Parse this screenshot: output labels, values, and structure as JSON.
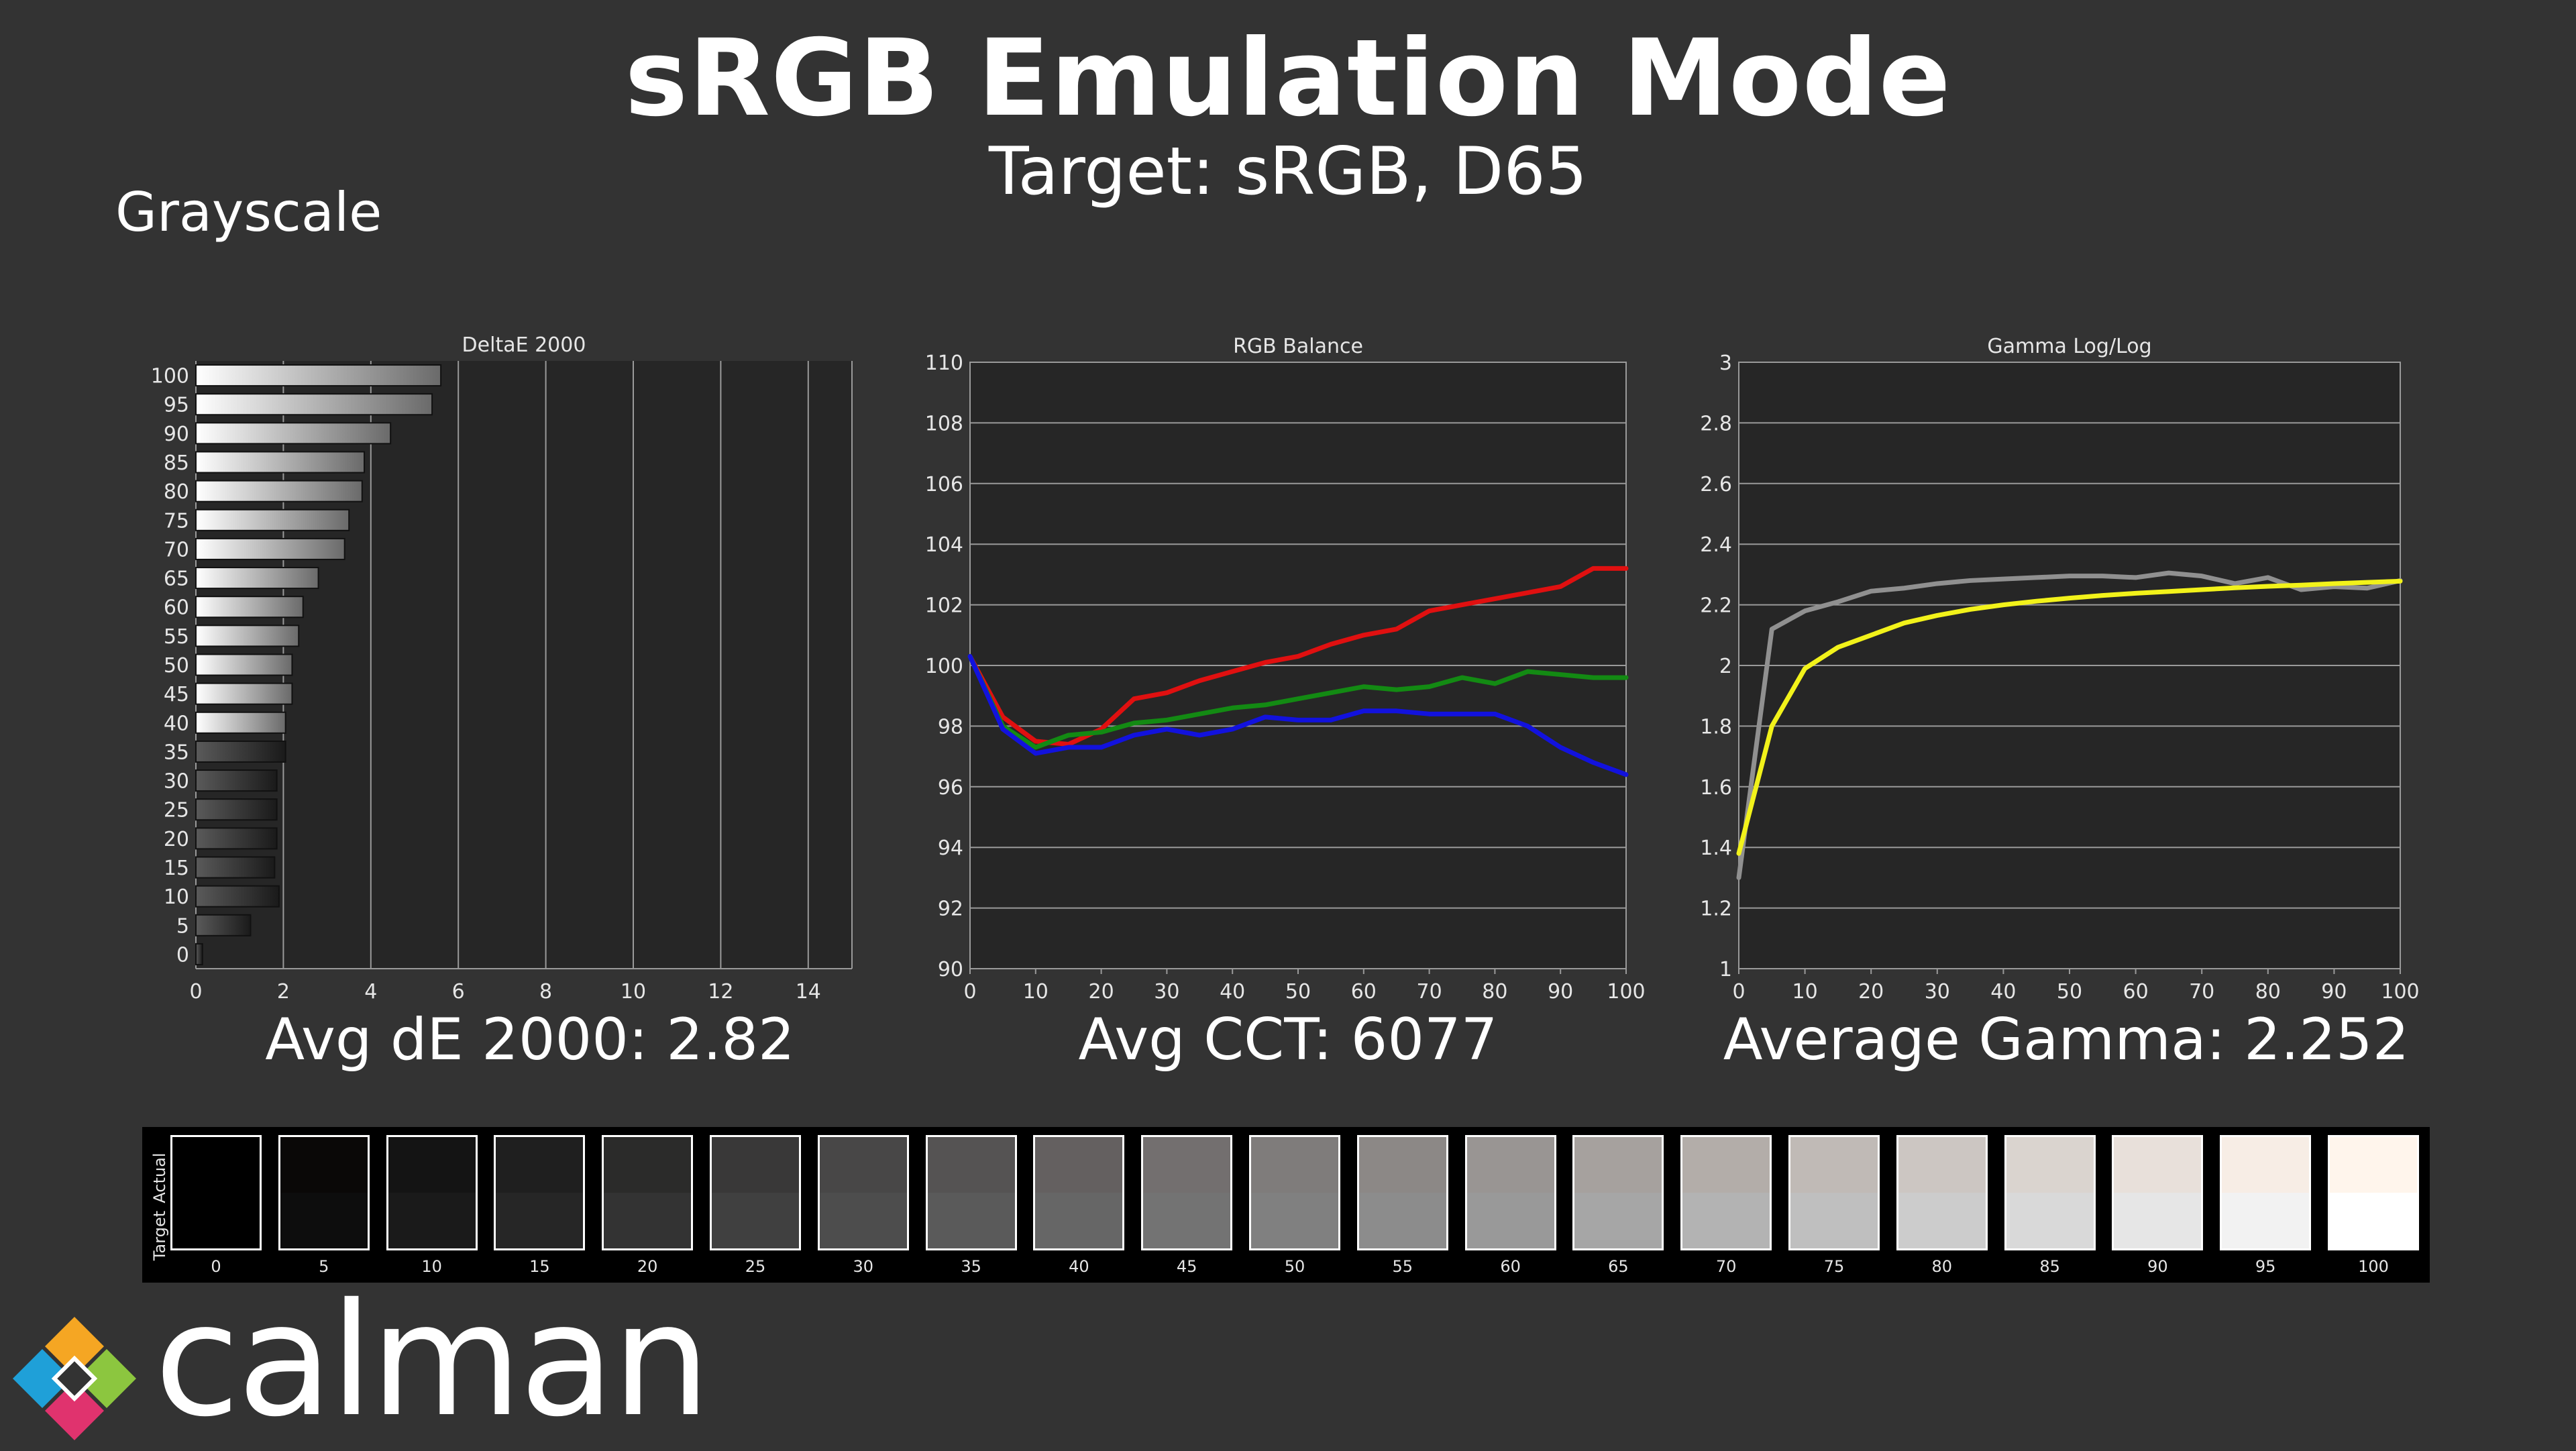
{
  "header": {
    "title": "sRGB Emulation Mode",
    "subtitle": "Target: sRGB, D65",
    "section": "Grayscale"
  },
  "summary": {
    "avg_de": "Avg dE 2000: 2.82",
    "avg_cct": "Avg CCT: 6077",
    "avg_gamma": "Average Gamma: 2.252"
  },
  "chart_data": [
    {
      "type": "bar",
      "orientation": "horizontal",
      "title": "DeltaE 2000",
      "categories": [
        "100",
        "95",
        "90",
        "85",
        "80",
        "75",
        "70",
        "65",
        "60",
        "55",
        "50",
        "45",
        "40",
        "35",
        "30",
        "25",
        "20",
        "15",
        "10",
        "5",
        "0"
      ],
      "values": [
        5.6,
        5.4,
        4.45,
        3.85,
        3.8,
        3.5,
        3.4,
        2.8,
        2.45,
        2.35,
        2.2,
        2.2,
        2.05,
        2.05,
        1.85,
        1.85,
        1.85,
        1.8,
        1.9,
        1.25,
        0.15
      ],
      "xlim": [
        0,
        15
      ],
      "xticks": [
        "0",
        "2",
        "4",
        "6",
        "8",
        "10",
        "12",
        "14"
      ],
      "xtick_values": [
        0,
        2,
        4,
        6,
        8,
        10,
        12,
        14
      ],
      "grid": true
    },
    {
      "type": "line",
      "title": "RGB Balance",
      "x": [
        0,
        5,
        10,
        15,
        20,
        25,
        30,
        35,
        40,
        45,
        50,
        55,
        60,
        65,
        70,
        75,
        80,
        85,
        90,
        95,
        100
      ],
      "ylim": [
        90,
        110
      ],
      "yticks": [
        "90",
        "92",
        "94",
        "96",
        "98",
        "100",
        "102",
        "104",
        "106",
        "108",
        "110"
      ],
      "ytick_values": [
        90,
        92,
        94,
        96,
        98,
        100,
        102,
        104,
        106,
        108,
        110
      ],
      "xticks": [
        "0",
        "10",
        "20",
        "30",
        "40",
        "50",
        "60",
        "70",
        "80",
        "90",
        "100"
      ],
      "xtick_values": [
        0,
        10,
        20,
        30,
        40,
        50,
        60,
        70,
        80,
        90,
        100
      ],
      "grid": true,
      "series": [
        {
          "color": "#e01010",
          "values": [
            100.3,
            98.3,
            97.5,
            97.4,
            97.9,
            98.9,
            99.1,
            99.5,
            99.8,
            100.1,
            100.3,
            100.7,
            101.0,
            101.2,
            101.8,
            102.0,
            102.2,
            102.4,
            102.6,
            103.2,
            103.2
          ]
        },
        {
          "color": "#138a13",
          "values": [
            100.3,
            98.0,
            97.3,
            97.7,
            97.8,
            98.1,
            98.2,
            98.4,
            98.6,
            98.7,
            98.9,
            99.1,
            99.3,
            99.2,
            99.3,
            99.6,
            99.4,
            99.8,
            99.7,
            99.6,
            99.6
          ]
        },
        {
          "color": "#1212dd",
          "values": [
            100.3,
            97.9,
            97.1,
            97.3,
            97.3,
            97.7,
            97.9,
            97.7,
            97.9,
            98.3,
            98.2,
            98.2,
            98.5,
            98.5,
            98.4,
            98.4,
            98.4,
            98.0,
            97.3,
            96.8,
            96.4
          ]
        }
      ]
    },
    {
      "type": "line",
      "title": "Gamma Log/Log",
      "x": [
        0,
        5,
        10,
        15,
        20,
        25,
        30,
        35,
        40,
        45,
        50,
        55,
        60,
        65,
        70,
        75,
        80,
        85,
        90,
        95,
        100
      ],
      "ylim": [
        1,
        3
      ],
      "yticks": [
        "1",
        "1.2",
        "1.4",
        "1.6",
        "1.8",
        "2",
        "2.2",
        "2.4",
        "2.6",
        "2.8",
        "3"
      ],
      "ytick_values": [
        1,
        1.2,
        1.4,
        1.6,
        1.8,
        2,
        2.2,
        2.4,
        2.6,
        2.8,
        3
      ],
      "xticks": [
        "0",
        "10",
        "20",
        "30",
        "40",
        "50",
        "60",
        "70",
        "80",
        "90",
        "100"
      ],
      "xtick_values": [
        0,
        10,
        20,
        30,
        40,
        50,
        60,
        70,
        80,
        90,
        100
      ],
      "grid": true,
      "series": [
        {
          "color": "#909090",
          "values": [
            1.3,
            2.12,
            2.18,
            2.21,
            2.245,
            2.255,
            2.27,
            2.28,
            2.285,
            2.29,
            2.295,
            2.295,
            2.29,
            2.305,
            2.295,
            2.27,
            2.29,
            2.25,
            2.26,
            2.255,
            2.28
          ]
        },
        {
          "color": "#f2f21a",
          "values": [
            1.38,
            1.8,
            1.99,
            2.06,
            2.1,
            2.14,
            2.165,
            2.185,
            2.2,
            2.212,
            2.222,
            2.231,
            2.238,
            2.244,
            2.25,
            2.256,
            2.261,
            2.265,
            2.27,
            2.274,
            2.278
          ]
        }
      ]
    }
  ],
  "swatches": {
    "actual_label": "Actual",
    "target_label": "Target",
    "items": [
      {
        "label": "0",
        "actual": "#000000",
        "target": "#000000"
      },
      {
        "label": "5",
        "actual": "#0a0807",
        "target": "#0d0d0d"
      },
      {
        "label": "10",
        "actual": "#141414",
        "target": "#1a1a1a"
      },
      {
        "label": "15",
        "actual": "#1f1f1f",
        "target": "#262626"
      },
      {
        "label": "20",
        "actual": "#2b2b2a",
        "target": "#333333"
      },
      {
        "label": "25",
        "actual": "#393838",
        "target": "#404040"
      },
      {
        "label": "30",
        "actual": "#484747",
        "target": "#4d4d4d"
      },
      {
        "label": "35",
        "actual": "#555353",
        "target": "#5a5a5a"
      },
      {
        "label": "40",
        "actual": "#646060",
        "target": "#666666"
      },
      {
        "label": "45",
        "actual": "#736f6f",
        "target": "#737373"
      },
      {
        "label": "50",
        "actual": "#7f7c7b",
        "target": "#808080"
      },
      {
        "label": "55",
        "actual": "#8c8886",
        "target": "#8c8c8c"
      },
      {
        "label": "60",
        "actual": "#999593",
        "target": "#999999"
      },
      {
        "label": "65",
        "actual": "#a6a19e",
        "target": "#a6a6a6"
      },
      {
        "label": "70",
        "actual": "#b3ada9",
        "target": "#b3b3b3"
      },
      {
        "label": "75",
        "actual": "#c0bab6",
        "target": "#bfbfbf"
      },
      {
        "label": "80",
        "actual": "#ccc6c2",
        "target": "#cccccc"
      },
      {
        "label": "85",
        "actual": "#dad4cf",
        "target": "#d9d9d9"
      },
      {
        "label": "90",
        "actual": "#e8e0da",
        "target": "#e6e6e6"
      },
      {
        "label": "95",
        "actual": "#f7ede5",
        "target": "#f2f2f2"
      },
      {
        "label": "100",
        "actual": "#fff5ec",
        "target": "#ffffff"
      }
    ]
  },
  "brand": {
    "name": "calman",
    "logo_icon": "calman-diamond-icon",
    "logo_colors": [
      "#f5a623",
      "#8cc63f",
      "#1fa0d8",
      "#e0336e",
      "#ffffff"
    ]
  }
}
